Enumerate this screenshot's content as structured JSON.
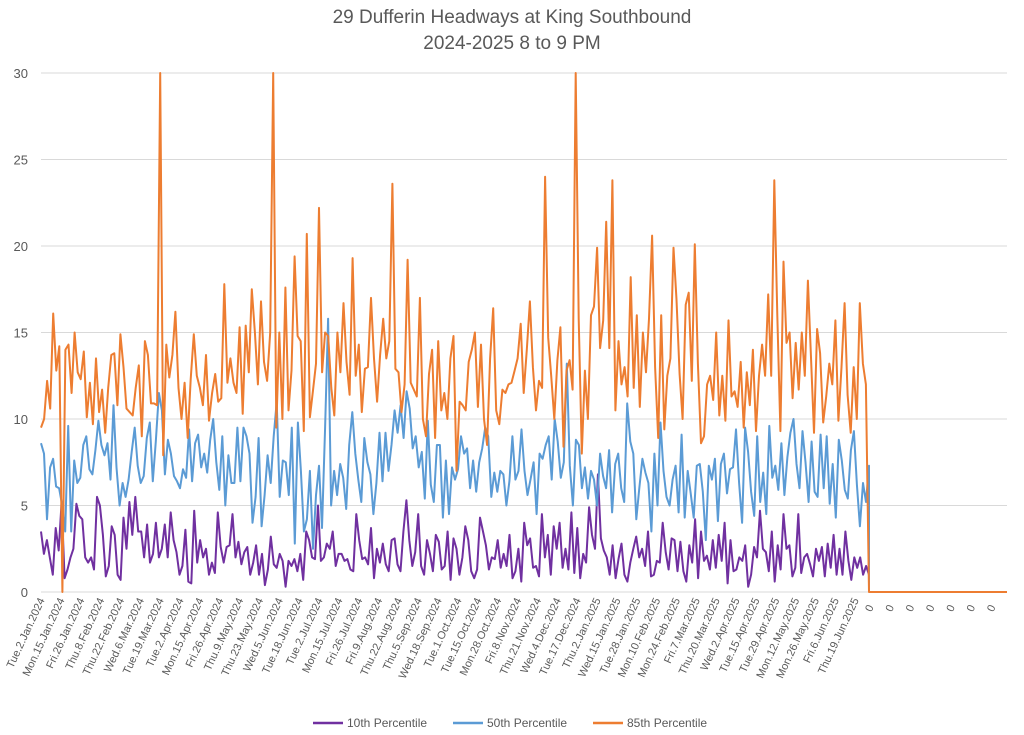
{
  "chart_data": {
    "type": "line",
    "title": "29 Dufferin Headways at King Southbound",
    "subtitle": "2024-2025 8 to 9 PM",
    "xlabel": "",
    "ylabel": "",
    "ylim": [
      0,
      30
    ],
    "yticks": [
      0,
      5,
      10,
      15,
      20,
      25,
      30
    ],
    "grid": true,
    "legend_position": "bottom",
    "x_tick_labels": [
      "Tue.2.Jan.2024",
      "Mon.15.Jan.2024",
      "Fri.26.Jan.2024",
      "Thu.8.Feb.2024",
      "Thu.22.Feb.2024",
      "Wed.6.Mar.2024",
      "Tue.19.Mar.2024",
      "Tue.2.Apr.2024",
      "Mon.15.Apr.2024",
      "Fri.26.Apr.2024",
      "Thu.9.May.2024",
      "Thu.23.May.2024",
      "Wed.5.Jun.2024",
      "Tue.18.Jun.2024",
      "Tue.2.Jul.2024",
      "Mon.15.Jul.2024",
      "Fri.26.Jul.2024",
      "Fri.9.Aug.2024",
      "Thu.22.Aug.2024",
      "Thu.5.Sep.2024",
      "Wed.18.Sep.2024",
      "Tue.1.Oct.2024",
      "Tue.15.Oct.2024",
      "Mon.28.Oct.2024",
      "Fri.8.Nov.2024",
      "Thu.21.Nov.2024",
      "Wed.4.Dec.2024",
      "Tue.17.Dec.2024",
      "Thu.2.Jan.2025",
      "Wed.15.Jan.2025",
      "Tue.28.Jan.2025",
      "Mon.10.Feb.2025",
      "Mon.24.Feb.2025",
      "Fri.7.Mar.2025",
      "Thu.20.Mar.2025",
      "Wed.2.Apr.2025",
      "Tue.15.Apr.2025",
      "Tue.29.Apr.2025",
      "Mon.12.May.2025",
      "Mon.26.May.2025",
      "Fri.6.Jun.2025",
      "Thu.19.Jun.2025",
      "0",
      "0",
      "0",
      "0",
      "0",
      "0",
      "0"
    ],
    "data_tick_count": 42,
    "zero_tail_points": 66,
    "series": [
      {
        "name": "10th Percentile",
        "color": "#7030a0",
        "values": [
          3.5,
          2.2,
          3.0,
          2.0,
          1.0,
          3.7,
          2.4,
          5.2,
          0.8,
          1.3,
          2.0,
          2.5,
          5.1,
          4.4,
          4.2,
          2.0,
          1.7,
          2.0,
          1.3,
          5.5,
          5.0,
          3.3,
          0.9,
          1.5,
          3.8,
          3.3,
          1.0,
          0.7,
          4.3,
          2.5,
          5.2,
          3.3,
          5.5,
          3.5,
          3.5,
          2.0,
          3.9,
          1.7,
          2.2,
          4.0,
          2.0,
          2.5,
          3.9,
          2.0,
          4.6,
          3.0,
          2.3,
          1.0,
          1.5,
          3.6,
          0.6,
          0.5,
          4.7,
          1.7,
          3.0,
          2.0,
          2.5,
          1.0,
          1.7,
          1.1,
          4.6,
          2.6,
          1.7,
          2.6,
          2.7,
          4.5,
          2.0,
          2.9,
          1.6,
          2.3,
          2.6,
          1.0,
          1.7,
          2.7,
          1.0,
          2.2,
          0.4,
          1.3,
          3.2,
          1.6,
          1.4,
          2.2,
          1.8,
          0.3,
          1.8,
          1.5,
          1.9,
          1.2,
          2.2,
          0.7,
          3.5,
          3.0,
          2.0,
          1.9,
          5.0,
          1.8,
          2.0,
          2.8,
          2.5,
          3.5,
          1.5,
          2.2,
          2.2,
          1.8,
          1.9,
          1.3,
          1.2,
          4.5,
          3.0,
          1.9,
          2.0,
          1.6,
          3.7,
          0.8,
          2.5,
          1.7,
          2.8,
          1.6,
          1.2,
          3.0,
          3.1,
          1.6,
          1.2,
          3.5,
          5.3,
          3.0,
          1.5,
          2.3,
          4.5,
          1.5,
          1.0,
          3.0,
          2.2,
          1.2,
          3.3,
          2.9,
          1.3,
          1.5,
          3.5,
          0.7,
          3.1,
          2.5,
          1.0,
          2.0,
          3.8,
          3.0,
          1.2,
          0.8,
          1.3,
          4.3,
          3.5,
          2.7,
          1.3,
          2.0,
          1.9,
          3.0,
          1.4,
          2.2,
          1.5,
          3.3,
          0.8,
          1.2,
          2.5,
          0.6,
          4.0,
          2.7,
          3.1,
          1.4,
          1.5,
          0.9,
          4.5,
          2.0,
          3.3,
          1.0,
          3.8,
          2.5,
          4.0,
          1.4,
          2.5,
          1.3,
          4.6,
          1.1,
          3.7,
          0.8,
          2.2,
          1.7,
          4.9,
          3.3,
          2.5,
          6.8,
          3.1,
          2.4,
          2.0,
          1.0,
          2.7,
          0.8,
          1.9,
          2.8,
          1.0,
          0.6,
          1.7,
          2.5,
          3.2,
          2.0,
          2.5,
          1.5,
          3.5,
          0.9,
          1.0,
          1.8,
          1.7,
          4.0,
          2.3,
          1.3,
          3.1,
          3.0,
          1.2,
          2.9,
          1.2,
          0.6,
          2.7,
          1.7,
          4.2,
          0.8,
          3.5,
          1.8,
          2.1,
          1.3,
          3.0,
          1.4,
          3.3,
          1.8,
          4.0,
          0.5,
          3.0,
          1.2,
          1.3,
          2.0,
          1.8,
          2.7,
          0.3,
          1.0,
          2.6,
          2.0,
          4.7,
          2.5,
          2.3,
          1.2,
          3.5,
          0.6,
          2.7,
          1.3,
          4.5,
          2.5,
          2.7,
          0.9,
          1.4,
          4.5,
          1.1,
          2.0,
          2.2,
          1.6,
          0.9,
          2.5,
          1.8,
          2.6,
          0.9,
          2.8,
          1.4,
          3.3,
          1.0,
          2.5,
          1.0,
          3.5,
          1.8,
          0.7,
          2.0,
          1.4,
          2.0,
          1.0,
          1.5,
          1.0
        ]
      },
      {
        "name": "50th Percentile",
        "color": "#5b9bd5",
        "values": [
          8.6,
          8.0,
          4.2,
          7.2,
          7.7,
          6.1,
          6.0,
          5.0,
          3.5,
          9.6,
          3.5,
          7.6,
          6.3,
          6.6,
          8.5,
          9.0,
          7.1,
          6.8,
          8.2,
          9.9,
          8.5,
          7.9,
          8.6,
          6.5,
          10.8,
          7.2,
          5.0,
          6.3,
          5.5,
          6.5,
          8.1,
          9.5,
          7.3,
          6.3,
          6.7,
          8.9,
          9.8,
          6.4,
          8.7,
          11.5,
          10.5,
          6.8,
          8.8,
          8.0,
          6.7,
          6.4,
          6.0,
          7.1,
          6.6,
          9.4,
          6.4,
          8.6,
          9.1,
          7.2,
          8.0,
          6.9,
          8.8,
          10.0,
          7.5,
          5.9,
          9.0,
          5.0,
          7.9,
          6.3,
          6.3,
          9.5,
          6.4,
          9.5,
          9.0,
          8.0,
          4.0,
          5.5,
          8.9,
          3.8,
          5.6,
          7.9,
          6.3,
          9.0,
          11.0,
          5.5,
          7.6,
          7.5,
          5.6,
          9.5,
          2.8,
          9.8,
          7.0,
          3.5,
          4.2,
          7.0,
          2.5,
          5.6,
          7.3,
          3.7,
          9.5,
          15.8,
          5.0,
          7.0,
          5.6,
          7.4,
          6.6,
          4.8,
          8.5,
          10.4,
          8.0,
          6.5,
          5.2,
          8.9,
          7.5,
          6.8,
          4.5,
          6.3,
          9.2,
          6.4,
          9.2,
          7.0,
          8.5,
          10.5,
          9.2,
          10.8,
          8.9,
          11.6,
          10.6,
          8.3,
          9.0,
          7.2,
          8.1,
          5.4,
          9.9,
          6.2,
          5.2,
          8.5,
          8.5,
          4.3,
          7.6,
          4.5,
          7.2,
          6.5,
          7.1,
          9.0,
          8.0,
          8.3,
          6.0,
          7.6,
          5.8,
          7.5,
          8.3,
          9.5,
          9.0,
          5.5,
          6.9,
          5.8,
          7.0,
          6.8,
          5.0,
          6.4,
          9.0,
          6.5,
          7.0,
          9.4,
          7.0,
          5.6,
          6.5,
          7.5,
          4.5,
          8.0,
          7.7,
          8.5,
          9.0,
          6.5,
          10.0,
          8.7,
          6.6,
          7.5,
          13.2,
          7.3,
          5.0,
          8.8,
          8.5,
          6.0,
          7.2,
          5.4,
          7.0,
          6.5,
          5.0,
          8.0,
          6.7,
          6.0,
          8.2,
          4.6,
          7.4,
          8.0,
          6.0,
          5.2,
          10.9,
          8.7,
          8.0,
          4.2,
          6.0,
          7.7,
          6.9,
          6.3,
          3.5,
          8.0,
          5.0,
          9.8,
          7.0,
          5.5,
          5.0,
          6.5,
          7.3,
          4.6,
          9.1,
          4.3,
          7.0,
          5.7,
          4.3,
          7.3,
          7.4,
          5.8,
          3.0,
          7.3,
          6.5,
          7.7,
          4.1,
          7.4,
          8.0,
          5.7,
          7.1,
          7.2,
          9.4,
          6.3,
          4.0,
          9.5,
          8.1,
          5.8,
          4.4,
          9.0,
          5.2,
          6.9,
          4.5,
          9.6,
          6.6,
          7.3,
          5.9,
          8.6,
          5.6,
          7.8,
          9.2,
          10.0,
          7.4,
          6.0,
          9.3,
          7.5,
          5.2,
          8.7,
          5.8,
          5.5,
          9.1,
          6.0,
          9.0,
          5.1,
          7.4,
          4.3,
          8.8,
          7.6,
          5.9,
          5.4,
          8.2,
          9.3,
          6.2,
          3.8,
          6.3,
          5.2,
          7.3
        ]
      },
      {
        "name": "85th Percentile",
        "color": "#ed7d31",
        "values": [
          9.5,
          10.0,
          12.2,
          10.6,
          16.1,
          12.8,
          14.2,
          0.0,
          14.0,
          14.3,
          11.5,
          15.0,
          12.7,
          12.3,
          13.9,
          10.1,
          12.1,
          9.7,
          13.5,
          10.4,
          11.7,
          9.2,
          11.8,
          13.7,
          13.8,
          10.8,
          14.9,
          13.0,
          10.6,
          10.4,
          10.2,
          11.8,
          13.1,
          9.0,
          14.5,
          13.7,
          10.9,
          10.9,
          10.8,
          30.0,
          7.9,
          14.3,
          12.4,
          13.7,
          16.2,
          11.8,
          10.0,
          12.1,
          8.9,
          12.3,
          14.9,
          12.5,
          11.8,
          10.8,
          13.7,
          9.9,
          11.5,
          12.6,
          11.0,
          11.2,
          17.8,
          12.1,
          13.5,
          12.1,
          11.5,
          15.3,
          10.3,
          15.4,
          12.7,
          17.5,
          15.0,
          12.0,
          16.8,
          13.3,
          12.2,
          15.0,
          30.0,
          9.5,
          15.0,
          10.0,
          17.6,
          10.5,
          12.8,
          19.4,
          14.8,
          14.5,
          9.3,
          20.7,
          10.1,
          11.6,
          13.2,
          22.2,
          12.7,
          15.0,
          14.8,
          11.8,
          10.2,
          15.0,
          12.7,
          16.7,
          13.3,
          11.4,
          19.3,
          12.5,
          14.3,
          10.4,
          12.9,
          13.0,
          17.0,
          13.5,
          11.0,
          13.7,
          15.8,
          13.5,
          14.5,
          23.6,
          12.9,
          12.7,
          10.4,
          12.0,
          19.2,
          12.1,
          11.7,
          11.3,
          17.0,
          10.0,
          9.0,
          12.6,
          14.0,
          8.9,
          14.5,
          10.5,
          11.5,
          10.0,
          13.5,
          14.8,
          7.0,
          11.0,
          10.8,
          10.5,
          13.3,
          14.0,
          15.0,
          10.7,
          14.3,
          10.0,
          8.5,
          13.5,
          16.4,
          10.5,
          9.7,
          11.7,
          11.5,
          12.0,
          12.1,
          12.8,
          13.5,
          15.5,
          11.5,
          14.0,
          16.8,
          13.0,
          10.5,
          12.2,
          11.8,
          24.0,
          14.7,
          12.5,
          10.0,
          13.4,
          15.3,
          8.4,
          12.8,
          13.4,
          11.7,
          30.0,
          15.8,
          8.0,
          12.8,
          10.0,
          16.0,
          16.5,
          19.9,
          14.1,
          15.7,
          21.4,
          14.1,
          23.8,
          10.5,
          14.5,
          12.0,
          13.0,
          11.3,
          18.2,
          11.8,
          16.0,
          10.7,
          15.0,
          12.7,
          15.8,
          20.6,
          13.0,
          8.9,
          16.0,
          9.4,
          12.5,
          13.5,
          19.9,
          16.9,
          12.6,
          10.0,
          16.6,
          17.3,
          12.2,
          20.1,
          13.2,
          8.6,
          9.0,
          12.0,
          12.5,
          11.1,
          15.0,
          10.2,
          12.5,
          9.9,
          15.7,
          11.3,
          11.6,
          10.7,
          13.3,
          9.5,
          12.7,
          10.8,
          14.0,
          9.3,
          12.5,
          14.3,
          12.5,
          17.2,
          12.5,
          23.8,
          16.0,
          9.3,
          19.1,
          14.4,
          15.0,
          11.2,
          14.4,
          11.7,
          15.0,
          12.5,
          18.0,
          13.7,
          9.2,
          15.2,
          13.8,
          9.8,
          11.3,
          13.2,
          12.0,
          15.7,
          9.9,
          13.0,
          16.7,
          11.4,
          9.2,
          13.0,
          10.0,
          16.7,
          13.2,
          12.0,
          0.0
        ]
      }
    ]
  },
  "legend": {
    "items": [
      {
        "label": "10th Percentile",
        "color": "#7030a0"
      },
      {
        "label": "50th Percentile",
        "color": "#5b9bd5"
      },
      {
        "label": "85th Percentile",
        "color": "#ed7d31"
      }
    ]
  }
}
